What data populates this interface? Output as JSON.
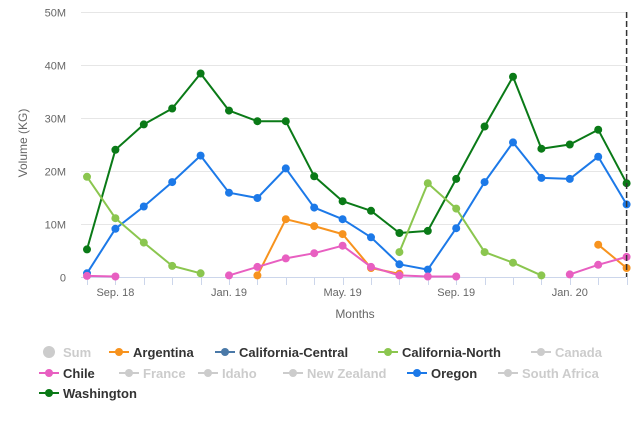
{
  "chart_data": {
    "type": "line",
    "xlabel": "Months",
    "ylabel": "Volume (KG)",
    "ylim": [
      0,
      50000000
    ],
    "y_ticks": [
      {
        "value": 0,
        "label": "0"
      },
      {
        "value": 10000000,
        "label": "10M"
      },
      {
        "value": 20000000,
        "label": "20M"
      },
      {
        "value": 30000000,
        "label": "30M"
      },
      {
        "value": 40000000,
        "label": "40M"
      },
      {
        "value": 50000000,
        "label": "50M"
      }
    ],
    "x": [
      "2018-08",
      "2018-09",
      "2018-10",
      "2018-11",
      "2018-12",
      "2019-01",
      "2019-02",
      "2019-03",
      "2019-04",
      "2019-05",
      "2019-06",
      "2019-07",
      "2019-08",
      "2019-09",
      "2019-10",
      "2019-11",
      "2019-12",
      "2020-01",
      "2020-02",
      "2020-03"
    ],
    "x_ticks": [
      {
        "index": 1,
        "label": "Sep. 18"
      },
      {
        "index": 5,
        "label": "Jan. 19"
      },
      {
        "index": 9,
        "label": "May. 19"
      },
      {
        "index": 13,
        "label": "Sep. 19"
      },
      {
        "index": 17,
        "label": "Jan. 20"
      }
    ],
    "hover_index": 19,
    "grid": "horizontal",
    "legend_position": "bottom",
    "series": [
      {
        "name": "Washington",
        "color": "#0a7a17",
        "values": [
          5200000,
          24000000,
          28800000,
          31800000,
          38400000,
          31400000,
          29400000,
          29400000,
          19000000,
          14300000,
          12500000,
          8300000,
          8700000,
          18500000,
          28400000,
          37800000,
          24200000,
          25000000,
          27800000,
          17700000
        ]
      },
      {
        "name": "Oregon",
        "color": "#1c79e8",
        "values": [
          700000,
          9100000,
          13300000,
          17900000,
          22900000,
          15900000,
          14900000,
          20500000,
          13100000,
          10900000,
          7500000,
          2400000,
          1400000,
          9200000,
          17900000,
          25400000,
          18700000,
          18500000,
          22700000,
          13700000
        ]
      },
      {
        "name": "California-North",
        "color": "#8bc64f",
        "values": [
          18900000,
          11100000,
          6500000,
          2100000,
          700000,
          null,
          null,
          null,
          null,
          null,
          null,
          4700000,
          17700000,
          12900000,
          4700000,
          2700000,
          300000,
          null,
          null,
          null
        ]
      },
      {
        "name": "Argentina",
        "color": "#f7931e",
        "values": [
          null,
          null,
          null,
          null,
          null,
          null,
          300000,
          10900000,
          9600000,
          8100000,
          1700000,
          600000,
          null,
          null,
          null,
          null,
          null,
          null,
          6100000,
          1700000
        ]
      },
      {
        "name": "Chile",
        "color": "#e85fc1",
        "values": [
          200000,
          100000,
          null,
          null,
          null,
          300000,
          1900000,
          3500000,
          4500000,
          5900000,
          1900000,
          300000,
          100000,
          100000,
          null,
          null,
          null,
          500000,
          2300000,
          3800000
        ]
      }
    ],
    "legend": [
      {
        "name": "Sum",
        "color": "#cccccc",
        "active": false,
        "marker": "bubble"
      },
      {
        "name": "Argentina",
        "color": "#f7931e",
        "active": true,
        "marker": "line"
      },
      {
        "name": "California-Central",
        "color": "#4a79a8",
        "active": true,
        "marker": "line"
      },
      {
        "name": "California-North",
        "color": "#8bc64f",
        "active": true,
        "marker": "line"
      },
      {
        "name": "Canada",
        "color": "#cccccc",
        "active": false,
        "marker": "line"
      },
      {
        "name": "Chile",
        "color": "#e85fc1",
        "active": true,
        "marker": "line"
      },
      {
        "name": "France",
        "color": "#cccccc",
        "active": false,
        "marker": "line"
      },
      {
        "name": "Idaho",
        "color": "#cccccc",
        "active": false,
        "marker": "line"
      },
      {
        "name": "New Zealand",
        "color": "#cccccc",
        "active": false,
        "marker": "line"
      },
      {
        "name": "Oregon",
        "color": "#1c79e8",
        "active": true,
        "marker": "line"
      },
      {
        "name": "South Africa",
        "color": "#cccccc",
        "active": false,
        "marker": "line"
      },
      {
        "name": "Washington",
        "color": "#0a7a17",
        "active": true,
        "marker": "line"
      }
    ]
  }
}
